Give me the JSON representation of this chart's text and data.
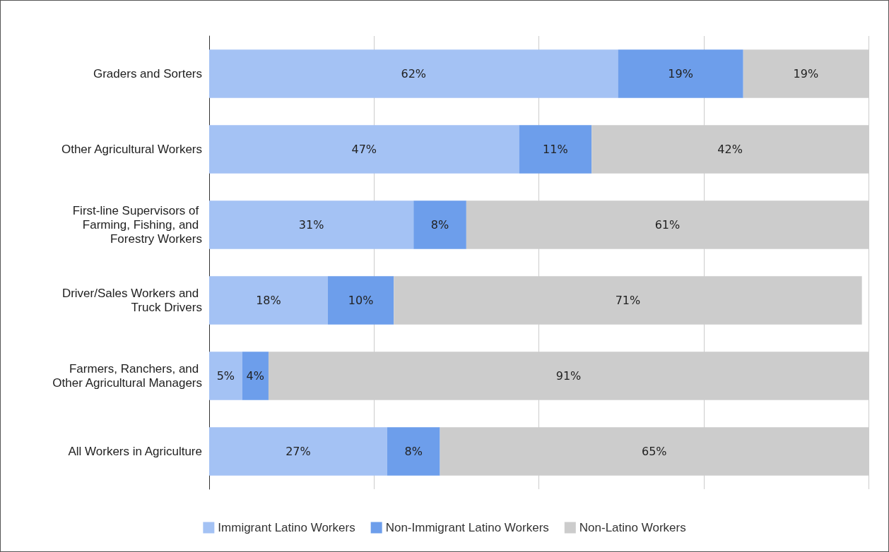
{
  "chart_data": {
    "type": "bar",
    "orientation": "horizontal",
    "stacked": true,
    "categories": [
      "Graders and Sorters",
      "Other Agricultural Workers",
      "First-line Supervisors of Farming, Fishing, and Forestry Workers",
      "Driver/Sales Workers and Truck Drivers",
      "Farmers, Ranchers, and Other Agricultural Managers",
      "All Workers in Agriculture"
    ],
    "series": [
      {
        "name": "Immigrant Latino Workers",
        "color": "#a4c2f4",
        "values": [
          62,
          47,
          31,
          18,
          5,
          27
        ],
        "value_labels": [
          "62%",
          "47%",
          "31%",
          "18%",
          "5%",
          "27%"
        ]
      },
      {
        "name": "Non-Immigrant Latino Workers",
        "color": "#6d9eeb",
        "values": [
          19,
          11,
          8,
          10,
          4,
          8
        ],
        "value_labels": [
          "19%",
          "11%",
          "8%",
          "10%",
          "4%",
          "8%"
        ]
      },
      {
        "name": "Non-Latino Workers",
        "color": "#cccccc",
        "values": [
          19,
          42,
          61,
          71,
          91,
          65
        ],
        "value_labels": [
          "19%",
          "42%",
          "61%",
          "71%",
          "91%",
          "65%"
        ]
      }
    ],
    "xlim": [
      0,
      100
    ],
    "xticks": [
      {
        "value": 0,
        "label": null
      },
      {
        "value": 25,
        "label": null
      },
      {
        "value": 50,
        "label": null
      },
      {
        "value": 75,
        "label": null
      },
      {
        "value": 100,
        "label": null
      }
    ],
    "grid": "x",
    "legend": "bottom",
    "tick_labels": "y"
  }
}
